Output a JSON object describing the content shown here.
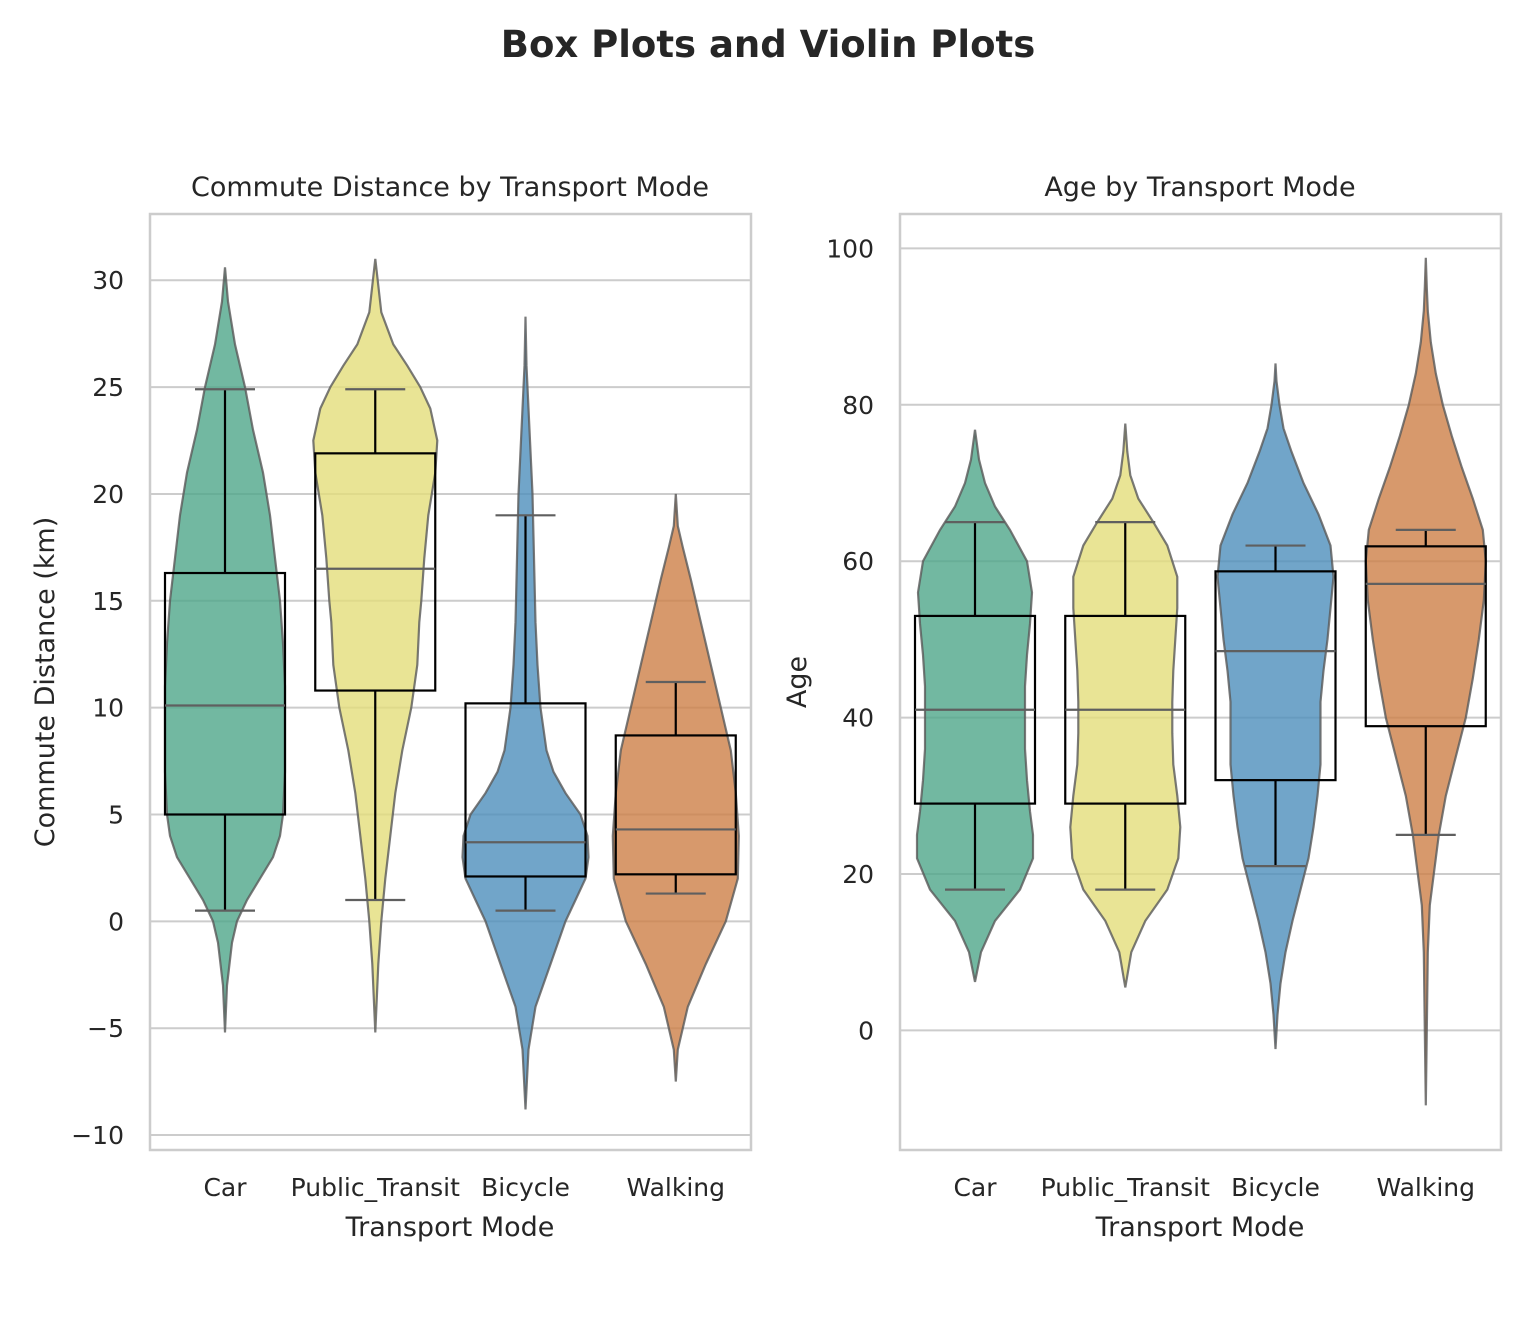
{
  "title": "Box Plots and Violin Plots",
  "colors": {
    "Car": "#4fa68a",
    "Public_Transit": "#e3dd7a",
    "Bicycle": "#4e8fbc",
    "Walking": "#cd8047"
  },
  "chart_data": [
    {
      "type": "violin+box",
      "title": "Commute Distance by Transport Mode",
      "xlabel": "Transport Mode",
      "ylabel": "Commute Distance (km)",
      "categories": [
        "Car",
        "Public_Transit",
        "Bicycle",
        "Walking"
      ],
      "ylim": [
        -10.7,
        33.1
      ],
      "yticks": [
        -10,
        -5,
        0,
        5,
        10,
        15,
        20,
        25,
        30
      ],
      "ytick_labels": [
        "−10",
        "−5",
        "0",
        "5",
        "10",
        "15",
        "20",
        "25",
        "30"
      ],
      "boxes": [
        {
          "q1": 5.0,
          "median": 10.1,
          "q3": 16.3,
          "whislo": 0.5,
          "whishi": 24.9
        },
        {
          "q1": 10.8,
          "median": 16.5,
          "q3": 21.9,
          "whislo": 1.0,
          "whishi": 24.9
        },
        {
          "q1": 2.1,
          "median": 3.7,
          "q3": 10.2,
          "whislo": 0.5,
          "whishi": 19.0
        },
        {
          "q1": 2.2,
          "median": 4.3,
          "q3": 8.7,
          "whislo": 1.3,
          "whishi": 11.2
        }
      ],
      "violins": [
        {
          "min": -5.2,
          "max": 30.6,
          "profile": [
            [
              -5.2,
              0
            ],
            [
              -3,
              0.02
            ],
            [
              -1,
              0.07
            ],
            [
              0,
              0.12
            ],
            [
              1,
              0.22
            ],
            [
              2,
              0.35
            ],
            [
              3,
              0.48
            ],
            [
              4,
              0.55
            ],
            [
              5,
              0.58
            ],
            [
              7,
              0.6
            ],
            [
              9,
              0.6
            ],
            [
              11,
              0.6
            ],
            [
              13,
              0.58
            ],
            [
              15,
              0.55
            ],
            [
              17,
              0.5
            ],
            [
              19,
              0.45
            ],
            [
              21,
              0.38
            ],
            [
              23,
              0.28
            ],
            [
              25,
              0.2
            ],
            [
              27,
              0.1
            ],
            [
              29,
              0.03
            ],
            [
              30.6,
              0
            ]
          ]
        },
        {
          "min": -5.2,
          "max": 31.0,
          "profile": [
            [
              -5.2,
              0
            ],
            [
              -2,
              0.03
            ],
            [
              0,
              0.06
            ],
            [
              2,
              0.1
            ],
            [
              4,
              0.15
            ],
            [
              6,
              0.2
            ],
            [
              8,
              0.27
            ],
            [
              10,
              0.36
            ],
            [
              12,
              0.42
            ],
            [
              14,
              0.44
            ],
            [
              15,
              0.46
            ],
            [
              17,
              0.49
            ],
            [
              19,
              0.53
            ],
            [
              21,
              0.6
            ],
            [
              22.5,
              0.62
            ],
            [
              24,
              0.55
            ],
            [
              25,
              0.45
            ],
            [
              26,
              0.32
            ],
            [
              27,
              0.18
            ],
            [
              28.5,
              0.06
            ],
            [
              31.0,
              0
            ]
          ]
        },
        {
          "min": -8.8,
          "max": 28.3,
          "profile": [
            [
              -8.8,
              0
            ],
            [
              -6,
              0.03
            ],
            [
              -4,
              0.1
            ],
            [
              -2,
              0.25
            ],
            [
              0,
              0.4
            ],
            [
              1,
              0.5
            ],
            [
              2,
              0.6
            ],
            [
              3,
              0.63
            ],
            [
              4,
              0.62
            ],
            [
              5,
              0.55
            ],
            [
              6,
              0.4
            ],
            [
              7,
              0.28
            ],
            [
              8,
              0.21
            ],
            [
              10,
              0.15
            ],
            [
              12,
              0.12
            ],
            [
              14,
              0.1
            ],
            [
              16,
              0.09
            ],
            [
              18,
              0.08
            ],
            [
              20,
              0.07
            ],
            [
              22,
              0.05
            ],
            [
              24,
              0.03
            ],
            [
              26,
              0.01
            ],
            [
              28.3,
              0
            ]
          ]
        },
        {
          "min": -7.5,
          "max": 20.0,
          "profile": [
            [
              -7.5,
              0
            ],
            [
              -6,
              0.02
            ],
            [
              -4,
              0.12
            ],
            [
              -2,
              0.3
            ],
            [
              0,
              0.5
            ],
            [
              2,
              0.62
            ],
            [
              4,
              0.63
            ],
            [
              6,
              0.6
            ],
            [
              8,
              0.55
            ],
            [
              10,
              0.45
            ],
            [
              12,
              0.35
            ],
            [
              14,
              0.25
            ],
            [
              16,
              0.15
            ],
            [
              17.5,
              0.07
            ],
            [
              18.5,
              0.02
            ],
            [
              20.0,
              0
            ]
          ]
        }
      ]
    },
    {
      "type": "violin+box",
      "title": "Age by Transport Mode",
      "xlabel": "Transport Mode",
      "ylabel": "Age",
      "categories": [
        "Car",
        "Public_Transit",
        "Bicycle",
        "Walking"
      ],
      "ylim": [
        -15.3,
        104.4
      ],
      "yticks": [
        0,
        20,
        40,
        60,
        80,
        100
      ],
      "ytick_labels": [
        "0",
        "20",
        "40",
        "60",
        "80",
        "100"
      ],
      "boxes": [
        {
          "q1": 29,
          "median": 41,
          "q3": 53,
          "whislo": 18,
          "whishi": 65
        },
        {
          "q1": 29,
          "median": 41,
          "q3": 53,
          "whislo": 18,
          "whishi": 65
        },
        {
          "q1": 32,
          "median": 48.5,
          "q3": 58.7,
          "whislo": 21,
          "whishi": 62
        },
        {
          "q1": 38.9,
          "median": 57.1,
          "q3": 61.9,
          "whislo": 25,
          "whishi": 64
        }
      ],
      "violins": [
        {
          "min": 6.2,
          "max": 76.8,
          "profile": [
            [
              6.2,
              0
            ],
            [
              10,
              0.06
            ],
            [
              14,
              0.2
            ],
            [
              18,
              0.45
            ],
            [
              22,
              0.58
            ],
            [
              25,
              0.58
            ],
            [
              28,
              0.55
            ],
            [
              32,
              0.52
            ],
            [
              36,
              0.5
            ],
            [
              40,
              0.5
            ],
            [
              44,
              0.5
            ],
            [
              48,
              0.52
            ],
            [
              52,
              0.55
            ],
            [
              56,
              0.57
            ],
            [
              60,
              0.52
            ],
            [
              64,
              0.35
            ],
            [
              67,
              0.2
            ],
            [
              70,
              0.1
            ],
            [
              73,
              0.04
            ],
            [
              76.8,
              0
            ]
          ]
        },
        {
          "min": 5.5,
          "max": 77.6,
          "profile": [
            [
              5.5,
              0
            ],
            [
              10,
              0.06
            ],
            [
              14,
              0.2
            ],
            [
              18,
              0.42
            ],
            [
              22,
              0.53
            ],
            [
              26,
              0.55
            ],
            [
              30,
              0.52
            ],
            [
              34,
              0.48
            ],
            [
              38,
              0.47
            ],
            [
              42,
              0.47
            ],
            [
              46,
              0.48
            ],
            [
              50,
              0.5
            ],
            [
              54,
              0.52
            ],
            [
              58,
              0.52
            ],
            [
              62,
              0.42
            ],
            [
              65,
              0.28
            ],
            [
              68,
              0.13
            ],
            [
              71,
              0.05
            ],
            [
              74,
              0.02
            ],
            [
              77.6,
              0
            ]
          ]
        },
        {
          "min": -2.4,
          "max": 85.3,
          "profile": [
            [
              -2.4,
              0
            ],
            [
              2,
              0.02
            ],
            [
              6,
              0.05
            ],
            [
              10,
              0.1
            ],
            [
              14,
              0.17
            ],
            [
              18,
              0.25
            ],
            [
              22,
              0.33
            ],
            [
              26,
              0.38
            ],
            [
              30,
              0.42
            ],
            [
              34,
              0.45
            ],
            [
              38,
              0.45
            ],
            [
              42,
              0.45
            ],
            [
              46,
              0.48
            ],
            [
              50,
              0.52
            ],
            [
              54,
              0.55
            ],
            [
              58,
              0.58
            ],
            [
              62,
              0.55
            ],
            [
              66,
              0.43
            ],
            [
              70,
              0.28
            ],
            [
              74,
              0.16
            ],
            [
              77,
              0.08
            ],
            [
              80,
              0.04
            ],
            [
              83,
              0.01
            ],
            [
              85.3,
              0
            ]
          ]
        },
        {
          "min": -9.6,
          "max": 98.8,
          "profile": [
            [
              -9.6,
              0
            ],
            [
              0,
              0.01
            ],
            [
              10,
              0.02
            ],
            [
              16,
              0.04
            ],
            [
              20,
              0.08
            ],
            [
              25,
              0.13
            ],
            [
              30,
              0.2
            ],
            [
              35,
              0.3
            ],
            [
              40,
              0.4
            ],
            [
              45,
              0.47
            ],
            [
              50,
              0.53
            ],
            [
              55,
              0.58
            ],
            [
              60,
              0.6
            ],
            [
              64,
              0.57
            ],
            [
              68,
              0.47
            ],
            [
              72,
              0.36
            ],
            [
              76,
              0.26
            ],
            [
              80,
              0.17
            ],
            [
              84,
              0.1
            ],
            [
              88,
              0.05
            ],
            [
              92,
              0.02
            ],
            [
              95,
              0.01
            ],
            [
              98.8,
              0
            ]
          ]
        }
      ]
    }
  ]
}
